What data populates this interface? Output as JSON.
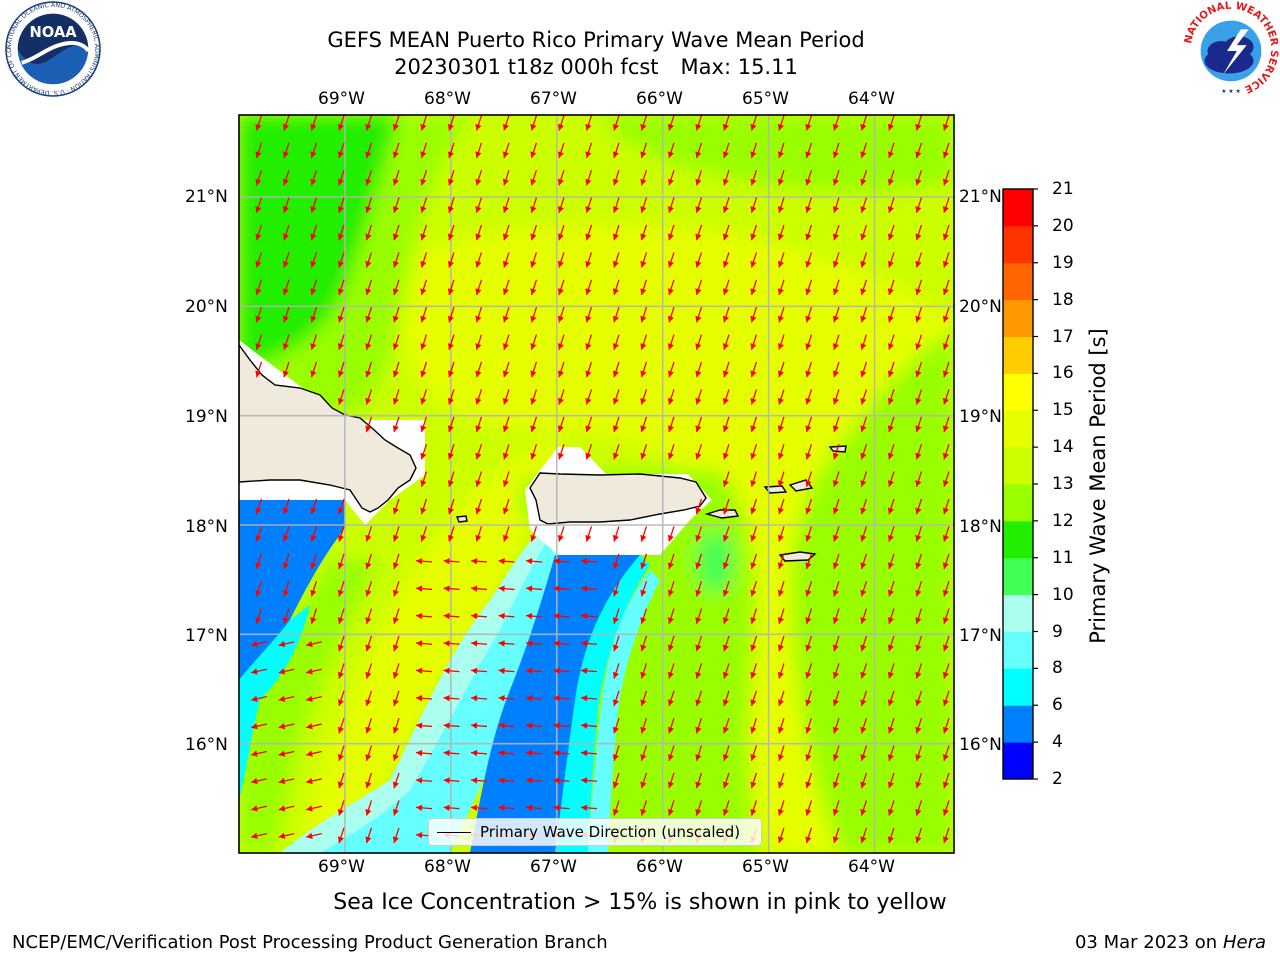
{
  "header": {
    "title_line1": "GEFS MEAN Puerto Rico Primary Wave Mean Period",
    "title_line2_run": "20230301 t18z 000h fcst",
    "title_line2_max": "Max: 15.11"
  },
  "map": {
    "lon_labels": [
      "69°W",
      "68°W",
      "67°W",
      "66°W",
      "65°W",
      "64°W"
    ],
    "lat_labels": [
      "21°N",
      "20°N",
      "19°N",
      "18°N",
      "17°N",
      "16°N"
    ],
    "extent": {
      "lon_min": -70.0,
      "lon_max": -63.25,
      "lat_min": 15.0,
      "lat_max": 21.75
    },
    "land_color": "#efeadb",
    "arrow_color": "#ff0000",
    "gridlines": true,
    "regions": [
      "Hispaniola",
      "Puerto Rico",
      "U.S. Virgin Islands",
      "British Virgin Islands"
    ]
  },
  "colorbar": {
    "label": "Primary Wave Mean Period [s]",
    "ticks": [
      "2",
      "4",
      "6",
      "8",
      "9",
      "10",
      "11",
      "12",
      "13",
      "14",
      "15",
      "16",
      "17",
      "18",
      "19",
      "20",
      "21"
    ],
    "bands": [
      {
        "from": 2,
        "to": 4,
        "color": "#0000ff"
      },
      {
        "from": 4,
        "to": 6,
        "color": "#0080ff"
      },
      {
        "from": 6,
        "to": 8,
        "color": "#00ffff"
      },
      {
        "from": 8,
        "to": 9,
        "color": "#66ffff"
      },
      {
        "from": 9,
        "to": 10,
        "color": "#aaffee"
      },
      {
        "from": 10,
        "to": 11,
        "color": "#44ff55"
      },
      {
        "from": 11,
        "to": 12,
        "color": "#22ee00"
      },
      {
        "from": 12,
        "to": 13,
        "color": "#99ff00"
      },
      {
        "from": 13,
        "to": 14,
        "color": "#ccff00"
      },
      {
        "from": 14,
        "to": 15,
        "color": "#e6ff00"
      },
      {
        "from": 15,
        "to": 16,
        "color": "#ffff00"
      },
      {
        "from": 16,
        "to": 17,
        "color": "#ffcc00"
      },
      {
        "from": 17,
        "to": 18,
        "color": "#ff9900"
      },
      {
        "from": 18,
        "to": 19,
        "color": "#ff6600"
      },
      {
        "from": 19,
        "to": 20,
        "color": "#ff3300"
      },
      {
        "from": 20,
        "to": 21,
        "color": "#ff0000"
      }
    ]
  },
  "legend": {
    "label": "Primary Wave Direction (unscaled)"
  },
  "note": "Sea Ice Concentration > 15% is shown in pink to yellow",
  "footer": {
    "left": "NCEP/EMC/Verification Post Processing Product Generation Branch",
    "right_date": "03 Mar 2023 on",
    "right_machine": "Hera"
  },
  "logos": {
    "noaa_text": "NOAA",
    "noaa_ring": "NATIONAL OCEANIC AND ATMOSPHERIC ADMINISTRATION · U.S. DEPARTMENT OF COMMERCE",
    "nws_ring": "NATIONAL WEATHER SERVICE"
  }
}
